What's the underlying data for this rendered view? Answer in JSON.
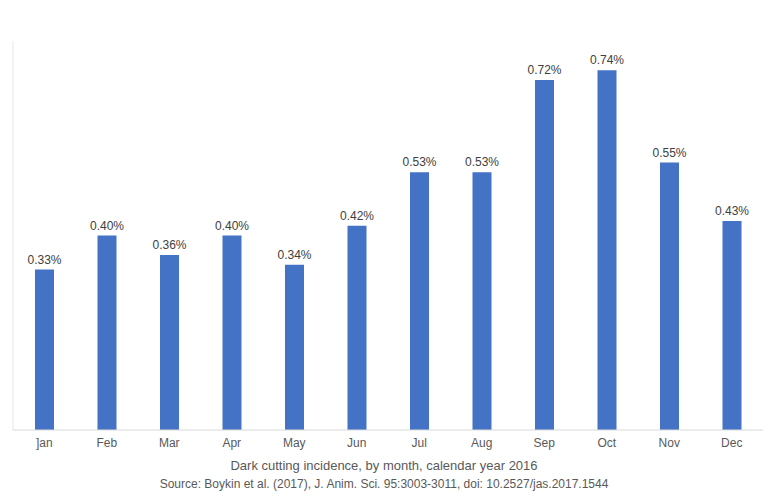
{
  "chart_data": {
    "type": "bar",
    "title": "Dark cutting incidence, by month, calendar year 2016",
    "subtitle": "Source: Boykin et al. (2017), J. Anim. Sci. 95:3003-3011, doi: 10.2527/jas.2017.1544",
    "categories": [
      "]an",
      "Feb",
      "Mar",
      "Apr",
      "May",
      "Jun",
      "Jul",
      "Aug",
      "Sep",
      "Oct",
      "Nov",
      "Dec"
    ],
    "values": [
      0.33,
      0.4,
      0.36,
      0.4,
      0.34,
      0.42,
      0.53,
      0.53,
      0.72,
      0.74,
      0.55,
      0.43
    ],
    "value_labels": [
      "0.33%",
      "0.40%",
      "0.36%",
      "0.40%",
      "0.34%",
      "0.42%",
      "0.53%",
      "0.53%",
      "0.72%",
      "0.74%",
      "0.55%",
      "0.43%"
    ],
    "color": "#4472c4",
    "ylim": [
      0,
      0.8
    ],
    "data_labels": true,
    "tick_labels": "x",
    "grid": false
  }
}
